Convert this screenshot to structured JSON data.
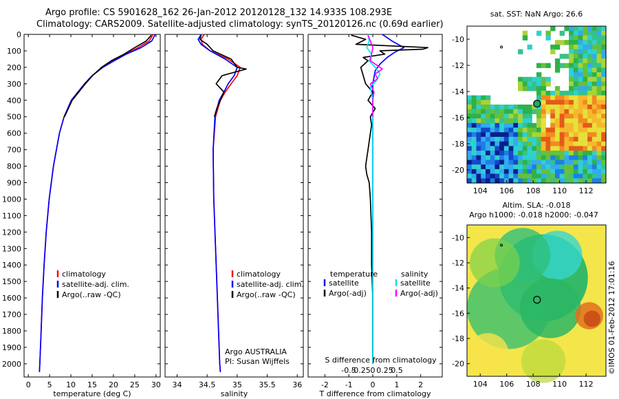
{
  "header": {
    "line1": "Argo profile: CS 5901628_162 26-Jan-2012 20120128_132 14.933S 108.293E",
    "line2": "Climatology: CARS2009. Satellite-adjusted climatology: synTS_20120126.nc (0.69d earlier)"
  },
  "colors": {
    "climatology": "#ff0000",
    "satellite": "#0000ff",
    "argo": "#000000",
    "sat_salinity": "#00e5ee",
    "argo_salinity_diff": "#ff00ff"
  },
  "chart_data": [
    {
      "type": "line",
      "panel": "temperature",
      "xlabel": "temperature (deg C)",
      "ylabel": "",
      "xlim": [
        -1,
        31
      ],
      "ylim": [
        2080,
        0
      ],
      "xticks": [
        0,
        5,
        10,
        15,
        20,
        25,
        30
      ],
      "yticks": [
        0,
        100,
        200,
        300,
        400,
        500,
        600,
        700,
        800,
        900,
        1000,
        1100,
        1200,
        1300,
        1400,
        1500,
        1600,
        1700,
        1800,
        1900,
        2000
      ],
      "legend": [
        "climatology",
        "satellite-adj. clim.",
        "Argo(..raw -QC)"
      ],
      "series": [
        {
          "name": "climatology",
          "color": "#ff0000",
          "depth": [
            0,
            40,
            80,
            120,
            160,
            200,
            250,
            300,
            400,
            500,
            600,
            800,
            1000,
            1200,
            1400,
            1600,
            1800,
            2000,
            2050
          ],
          "values": [
            29.3,
            28.4,
            25.8,
            22.8,
            20.0,
            17.5,
            15.0,
            13.2,
            10.1,
            8.4,
            7.3,
            5.9,
            4.9,
            4.2,
            3.7,
            3.3,
            3.0,
            2.7,
            2.6
          ]
        },
        {
          "name": "satellite-adj. clim.",
          "color": "#0000ff",
          "depth": [
            0,
            40,
            80,
            120,
            160,
            200,
            250,
            300,
            400,
            500,
            600,
            800,
            1000,
            1200,
            1400,
            1600,
            1800,
            2000,
            2050
          ],
          "values": [
            29.8,
            29.0,
            26.5,
            23.0,
            20.2,
            17.5,
            15.0,
            13.2,
            10.1,
            8.4,
            7.3,
            5.9,
            4.9,
            4.2,
            3.7,
            3.3,
            3.0,
            2.7,
            2.6
          ]
        },
        {
          "name": "Argo(..raw -QC)",
          "color": "#000000",
          "depth": [
            5,
            40,
            80,
            120,
            160,
            200,
            250,
            300,
            400,
            500
          ],
          "values": [
            28.9,
            27.7,
            25.0,
            22.5,
            19.5,
            17.2,
            15.1,
            13.4,
            10.3,
            8.5
          ]
        }
      ]
    },
    {
      "type": "line",
      "panel": "salinity",
      "xlabel": "salinity",
      "ylabel": "",
      "xlim": [
        33.8,
        36.1
      ],
      "ylim": [
        2080,
        0
      ],
      "xticks": [
        34,
        34.5,
        35,
        35.5,
        36
      ],
      "legend": [
        "climatology",
        "satellite-adj. clim.",
        "Argo(..raw -QC)"
      ],
      "annotation": [
        "Argo AUSTRALIA",
        "PI: Susan Wijffels"
      ],
      "series": [
        {
          "name": "climatology",
          "color": "#ff0000",
          "depth": [
            0,
            30,
            60,
            100,
            150,
            200,
            250,
            300,
            350,
            400,
            500,
            700,
            1000,
            1500,
            2000,
            2050
          ],
          "values": [
            34.45,
            34.4,
            34.42,
            34.55,
            34.85,
            35.05,
            35.0,
            34.9,
            34.8,
            34.72,
            34.64,
            34.6,
            34.61,
            34.66,
            34.71,
            34.72
          ]
        },
        {
          "name": "satellite-adj. clim.",
          "color": "#0000ff",
          "depth": [
            0,
            30,
            60,
            100,
            150,
            200,
            250,
            300,
            350,
            400,
            500,
            700,
            1000,
            1500,
            2000,
            2050
          ],
          "values": [
            34.4,
            34.35,
            34.4,
            34.55,
            34.8,
            35.0,
            34.95,
            34.85,
            34.78,
            34.7,
            34.63,
            34.6,
            34.61,
            34.66,
            34.71,
            34.72
          ]
        },
        {
          "name": "Argo(..raw -QC)",
          "color": "#000000",
          "depth": [
            5,
            30,
            60,
            100,
            150,
            200,
            210,
            250,
            300,
            350,
            400,
            450,
            500
          ],
          "values": [
            34.4,
            34.38,
            34.5,
            34.6,
            34.9,
            35.0,
            35.15,
            34.75,
            34.65,
            34.78,
            34.72,
            34.66,
            34.62
          ]
        }
      ]
    },
    {
      "type": "line",
      "panel": "difference",
      "xlabel": "T difference from climatology",
      "xlabel_top": "S difference from climatology",
      "xlim": [
        -2.7,
        2.9
      ],
      "ylim": [
        2080,
        0
      ],
      "xticks": [
        -2,
        -1,
        0,
        1,
        2
      ],
      "sticks": [
        -0.5,
        -0.25,
        0,
        0.25,
        0.5
      ],
      "legend_temperature": [
        "temperature",
        "satellite",
        "Argo(-adj)"
      ],
      "legend_salinity": [
        "salinity",
        "satellite",
        "Argo(-adj)"
      ],
      "series": [
        {
          "name": "satellite",
          "color": "#0000ff",
          "depth": [
            0,
            40,
            80,
            110,
            140,
            180,
            220,
            260,
            300,
            400,
            600,
            1000,
            1500,
            2000
          ],
          "values": [
            0.4,
            0.8,
            1.3,
            0.9,
            0.6,
            0.3,
            0.1,
            0.05,
            0.0,
            0.0,
            0.0,
            0.0,
            0.0,
            0.0
          ]
        },
        {
          "name": "Argo(-adj)",
          "color": "#000000",
          "depth": [
            5,
            30,
            60,
            80,
            90,
            100,
            120,
            140,
            160,
            200,
            250,
            300,
            350,
            400,
            450,
            500,
            550,
            600,
            650,
            700,
            750,
            800,
            850,
            900,
            1000,
            1200,
            1400,
            1600,
            1800,
            2000
          ],
          "values": [
            -0.9,
            -0.3,
            -0.7,
            2.3,
            2.1,
            0.3,
            0.5,
            -0.4,
            -0.2,
            -0.5,
            -0.4,
            -0.3,
            0.0,
            -0.2,
            0.1,
            -0.1,
            -0.05,
            -0.1,
            -0.15,
            -0.2,
            -0.25,
            -0.3,
            -0.25,
            -0.15,
            -0.1,
            -0.05,
            -0.05,
            0.0,
            0.0,
            0.0
          ]
        },
        {
          "name": "satellite (salinity)",
          "color": "#00e5ee",
          "depth": [
            0,
            40,
            80,
            120,
            160,
            200,
            240,
            280,
            320,
            400,
            600,
            1000,
            1500,
            2000
          ],
          "values": [
            -0.2,
            -0.15,
            -0.25,
            -0.05,
            -0.15,
            0.1,
            0.3,
            0.15,
            -0.1,
            0.0,
            0.0,
            0.0,
            0.0,
            0.0
          ]
        },
        {
          "name": "Argo(-adj) (salinity)",
          "color": "#ff00ff",
          "depth": [
            5,
            40,
            80,
            120,
            160,
            190,
            210,
            240,
            270,
            300,
            350,
            400,
            450,
            500
          ],
          "values": [
            -0.2,
            -0.1,
            0.0,
            -0.05,
            -0.1,
            0.2,
            0.4,
            0.1,
            0.2,
            -0.1,
            0.05,
            0.0,
            0.0,
            0.0
          ]
        }
      ]
    },
    {
      "type": "heatmap",
      "panel": "sst_map",
      "title": "sat. SST: NaN Argo: 26.6",
      "xlim": [
        103,
        113.5
      ],
      "ylim": [
        -21,
        -9
      ],
      "xticks": [
        104,
        106,
        108,
        110,
        112
      ],
      "yticks": [
        -10,
        -12,
        -14,
        -16,
        -18,
        -20
      ],
      "profile_position": {
        "lon": 108.293,
        "lat": -14.933
      }
    },
    {
      "type": "heatmap",
      "panel": "sla_map",
      "title_lines": [
        "Altim. SLA: -0.018",
        "Argo h1000: -0.018 h2000: -0.047"
      ],
      "xlim": [
        103,
        113.5
      ],
      "ylim": [
        -21,
        -9
      ],
      "xticks": [
        104,
        106,
        108,
        110,
        112
      ],
      "yticks": [
        -10,
        -12,
        -14,
        -16,
        -18,
        -20
      ],
      "profile_position": {
        "lon": 108.293,
        "lat": -14.933
      }
    }
  ],
  "footer": {
    "stamp": "©IMOS 01-Feb-2012 17:01:16"
  }
}
